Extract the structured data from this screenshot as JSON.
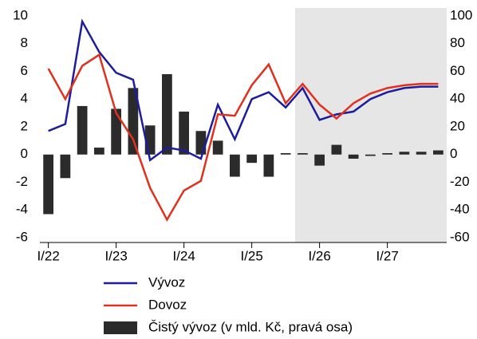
{
  "chart_data": {
    "type": "bar_line",
    "categories": [
      "I/22",
      null,
      null,
      null,
      "I/23",
      null,
      null,
      null,
      "I/24",
      null,
      null,
      null,
      "I/25",
      null,
      null,
      null,
      "I/26",
      null,
      null,
      null,
      "I/27",
      null,
      null,
      null
    ],
    "series": [
      {
        "name": "Vývoz",
        "type": "line",
        "color": "#1c1c9c",
        "values": [
          1.7,
          2.2,
          9.6,
          7.4,
          5.9,
          5.4,
          -0.4,
          0.5,
          0.3,
          -0.3,
          3.6,
          1.1,
          4.0,
          4.5,
          3.4,
          4.8,
          2.5,
          2.9,
          3.1,
          4.0,
          4.5,
          4.8,
          4.9,
          4.9
        ]
      },
      {
        "name": "Dovoz",
        "type": "line",
        "color": "#e0301e",
        "values": [
          6.2,
          4.0,
          6.4,
          7.2,
          3.0,
          1.1,
          -2.4,
          -4.7,
          -2.6,
          -1.9,
          2.9,
          2.8,
          5.0,
          6.5,
          3.7,
          5.1,
          3.6,
          2.6,
          3.7,
          4.4,
          4.8,
          5.0,
          5.1,
          5.1
        ]
      },
      {
        "name": "Čistý vývoz (v mld. Kč, pravá osa)",
        "type": "bar",
        "axis": "y2",
        "color": "#2b2b2b",
        "values": [
          -43,
          -17,
          35,
          5,
          33,
          48,
          21,
          58,
          31,
          17,
          10,
          -16,
          -6,
          -16,
          1,
          1,
          -8,
          7,
          -3,
          -1,
          1,
          2,
          2,
          3
        ]
      }
    ],
    "ylim": [
      -6,
      10
    ],
    "yticks": [
      -6,
      -4,
      -2,
      0,
      2,
      4,
      6,
      8,
      10
    ],
    "y2lim": [
      -60,
      100
    ],
    "y2ticks": [
      -60,
      -40,
      -20,
      0,
      20,
      40,
      60,
      80,
      100
    ],
    "legend": "bottom"
  }
}
